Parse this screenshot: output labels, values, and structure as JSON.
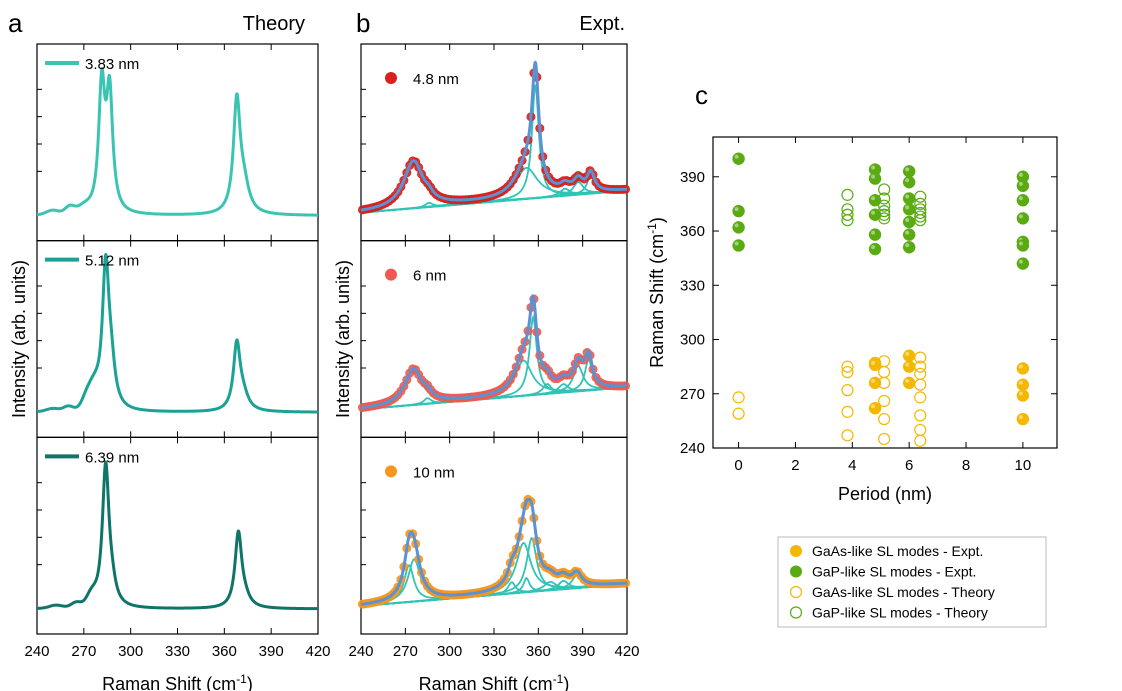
{
  "panels": {
    "a": {
      "label": "a",
      "title": "Theory"
    },
    "b": {
      "label": "b",
      "title": "Expt."
    },
    "c": {
      "label": "c"
    }
  },
  "colors": {
    "a_traces": [
      "#3cc4b3",
      "#1aa394",
      "#0e7567"
    ],
    "b_fit": "#5b92d4",
    "b_components": "#2ec4b6",
    "b_baseline": "#1f5f5a",
    "b_markers": [
      "#d8201c",
      "#ef5a4f",
      "#f6961b"
    ],
    "gaas": "#f5b800",
    "gap": "#5aaa12"
  },
  "chart_data": [
    {
      "id": "a",
      "type": "line",
      "title": "Theory",
      "xlabel": "Raman Shift (cm",
      "xlabel_sup": "-1",
      "xlabel_end": ")",
      "ylabel": "Intensity (arb. units)",
      "xlim": [
        240,
        420
      ],
      "xticks": [
        240,
        270,
        300,
        330,
        360,
        390,
        420
      ],
      "series": [
        {
          "name": "3.83 nm",
          "peaks": [
            [
              281.5,
              0.88,
              2.4
            ],
            [
              286.5,
              0.82,
              2.4
            ],
            [
              368,
              0.78,
              2.6
            ],
            [
              372.5,
              0.18,
              4
            ]
          ],
          "bumps": [
            [
              250,
              0.03,
              4
            ],
            [
              261,
              0.05,
              3
            ],
            [
              270,
              0.04,
              4
            ]
          ]
        },
        {
          "name": "5.12 nm",
          "peaks": [
            [
              284,
              1.0,
              2.6
            ],
            [
              287.5,
              0.25,
              3
            ],
            [
              368,
              0.46,
              2.6
            ],
            [
              372,
              0.1,
              4
            ]
          ],
          "bumps": [
            [
              250,
              0.02,
              4
            ],
            [
              260,
              0.03,
              3
            ],
            [
              272,
              0.09,
              3
            ],
            [
              277,
              0.12,
              3
            ]
          ]
        },
        {
          "name": "6.39 nm",
          "peaks": [
            [
              284,
              1.0,
              2.6
            ],
            [
              288,
              0.1,
              3
            ],
            [
              369,
              0.52,
              2.6
            ],
            [
              373,
              0.06,
              4
            ]
          ],
          "bumps": [
            [
              252,
              0.02,
              4
            ],
            [
              265,
              0.03,
              3
            ],
            [
              275,
              0.07,
              3
            ]
          ]
        }
      ]
    },
    {
      "id": "b",
      "type": "scatter",
      "title": "Expt.",
      "xlabel": "Raman Shift (cm",
      "xlabel_sup": "-1",
      "xlabel_end": ")",
      "ylabel": "Intensity (arb. units)",
      "xlim": [
        240,
        420
      ],
      "xticks": [
        240,
        270,
        300,
        330,
        360,
        390,
        420
      ],
      "series": [
        {
          "name": "4.8 nm",
          "components": [
            [
              275.5,
              0.33,
              8
            ],
            [
              286,
              0.03,
              3
            ],
            [
              352,
              0.22,
              9
            ],
            [
              358,
              0.8,
              2.8
            ],
            [
              378,
              0.05,
              4
            ],
            [
              387,
              0.09,
              4
            ],
            [
              395.5,
              0.13,
              3
            ]
          ]
        },
        {
          "name": "6 nm",
          "components": [
            [
              275.5,
              0.25,
              7
            ],
            [
              285,
              0.04,
              3
            ],
            [
              350,
              0.25,
              7
            ],
            [
              356.5,
              0.55,
              3
            ],
            [
              366,
              0.07,
              3.5
            ],
            [
              377,
              0.06,
              4
            ],
            [
              387,
              0.18,
              4
            ],
            [
              394,
              0.22,
              3
            ]
          ]
        },
        {
          "name": "10 nm",
          "components": [
            [
              272.5,
              0.26,
              4
            ],
            [
              276,
              0.3,
              5
            ],
            [
              342,
              0.08,
              3
            ],
            [
              350,
              0.35,
              6
            ],
            [
              355.5,
              0.38,
              4
            ],
            [
              352,
              0.1,
              2.5
            ],
            [
              368,
              0.06,
              5
            ],
            [
              377,
              0.06,
              4
            ],
            [
              386,
              0.09,
              4
            ]
          ]
        }
      ]
    },
    {
      "id": "c",
      "type": "scatter",
      "xlabel": "Period (nm)",
      "ylabel": "Raman Shift (cm",
      "ylabel_sup": "-1",
      "ylabel_end": ")",
      "xlim": [
        -0.9,
        11.2
      ],
      "ylim": [
        240,
        412
      ],
      "xticks": [
        0,
        2,
        4,
        6,
        8,
        10
      ],
      "yticks": [
        240,
        270,
        300,
        330,
        360,
        390
      ],
      "series": [
        {
          "name": "GaAs-like SL modes - Expt.",
          "color": "#f5b800",
          "filled": true,
          "points": [
            [
              4.8,
              287
            ],
            [
              4.8,
              286
            ],
            [
              4.8,
              276
            ],
            [
              4.8,
              262
            ],
            [
              6,
              291
            ],
            [
              6,
              285
            ],
            [
              6,
              276
            ],
            [
              10,
              284
            ],
            [
              10,
              275
            ],
            [
              10,
              269
            ],
            [
              10,
              256
            ]
          ]
        },
        {
          "name": "GaP-like SL modes - Expt.",
          "color": "#5aaa12",
          "filled": true,
          "points": [
            [
              0,
              400
            ],
            [
              0,
              371
            ],
            [
              0,
              362
            ],
            [
              0,
              352
            ],
            [
              4.8,
              394
            ],
            [
              4.8,
              389
            ],
            [
              4.8,
              377
            ],
            [
              4.8,
              369
            ],
            [
              4.8,
              358
            ],
            [
              4.8,
              350
            ],
            [
              6,
              393
            ],
            [
              6,
              387
            ],
            [
              6,
              378
            ],
            [
              6,
              372
            ],
            [
              6,
              365
            ],
            [
              6,
              358
            ],
            [
              6,
              351
            ],
            [
              10,
              390
            ],
            [
              10,
              385
            ],
            [
              10,
              377
            ],
            [
              10,
              367
            ],
            [
              10,
              354
            ],
            [
              10,
              352
            ],
            [
              10,
              342
            ]
          ]
        },
        {
          "name": "GaAs-like SL modes - Theory",
          "color": "#f5b800",
          "filled": false,
          "points": [
            [
              0,
              268
            ],
            [
              0,
              259
            ],
            [
              3.83,
              285
            ],
            [
              3.83,
              282
            ],
            [
              3.83,
              272
            ],
            [
              3.83,
              260
            ],
            [
              3.83,
              247
            ],
            [
              5.12,
              288
            ],
            [
              5.12,
              282
            ],
            [
              5.12,
              276
            ],
            [
              5.12,
              266
            ],
            [
              5.12,
              256
            ],
            [
              5.12,
              245
            ],
            [
              6.39,
              290
            ],
            [
              6.39,
              285
            ],
            [
              6.39,
              281
            ],
            [
              6.39,
              275
            ],
            [
              6.39,
              268
            ],
            [
              6.39,
              258
            ],
            [
              6.39,
              250
            ],
            [
              6.39,
              244
            ]
          ]
        },
        {
          "name": "GaP-like SL modes - Theory",
          "color": "#5aaa12",
          "filled": false,
          "points": [
            [
              3.83,
              380
            ],
            [
              3.83,
              372
            ],
            [
              3.83,
              369
            ],
            [
              3.83,
              366
            ],
            [
              5.12,
              383
            ],
            [
              5.12,
              378
            ],
            [
              5.12,
              374
            ],
            [
              5.12,
              371
            ],
            [
              5.12,
              369
            ],
            [
              5.12,
              367
            ],
            [
              6.39,
              379
            ],
            [
              6.39,
              375
            ],
            [
              6.39,
              372
            ],
            [
              6.39,
              370
            ],
            [
              6.39,
              368
            ],
            [
              6.39,
              366
            ]
          ]
        }
      ]
    }
  ]
}
